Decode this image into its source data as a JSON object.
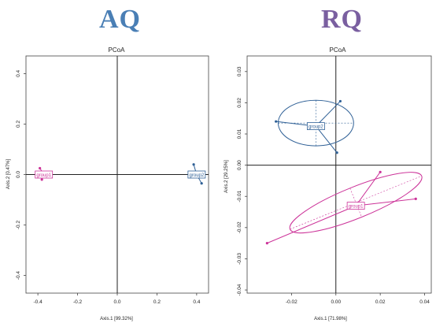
{
  "titles": {
    "left": "AQ",
    "right": "RQ",
    "left_color": "#4a7fb5",
    "right_color": "#7a5fa0"
  },
  "colors": {
    "group1": "#cc3399",
    "group2": "#2f6096"
  },
  "chart_data": [
    {
      "type": "scatter",
      "title": "PCoA",
      "xlabel": "Axis.1 [99.32%]",
      "ylabel": "Axis.2 [0.47%]",
      "xlim": [
        -0.46,
        0.46
      ],
      "ylim": [
        -0.47,
        0.47
      ],
      "xticks": [
        -0.4,
        -0.2,
        0.0,
        0.2,
        0.4
      ],
      "xtick_labels": [
        "-0.4",
        "-0.2",
        "0.0",
        "0.2",
        "0.4"
      ],
      "yticks": [
        -0.4,
        -0.2,
        0.0,
        0.2,
        0.4
      ],
      "ytick_labels": [
        "-0.4",
        "-0.2",
        "0.0",
        "0.2",
        "0.4"
      ],
      "reference_lines": {
        "x": 0,
        "y": 0
      },
      "groups": [
        {
          "name": "group1",
          "color": "#cc3399",
          "centroid": [
            -0.37,
            0.0
          ],
          "points": [
            [
              -0.39,
              0.025
            ],
            [
              -0.37,
              0.005
            ],
            [
              -0.38,
              -0.02
            ]
          ]
        },
        {
          "name": "group2",
          "color": "#2f6096",
          "centroid": [
            0.4,
            0.0
          ],
          "points": [
            [
              0.385,
              0.04
            ],
            [
              0.41,
              0.005
            ],
            [
              0.425,
              -0.035
            ]
          ]
        }
      ]
    },
    {
      "type": "scatter",
      "title": "PCoA",
      "xlabel": "Axis.1 [71.98%]",
      "ylabel": "Axis.2 [29.25%]",
      "xlim": [
        -0.04,
        0.043
      ],
      "ylim": [
        -0.041,
        0.035
      ],
      "xticks": [
        -0.02,
        0.0,
        0.02,
        0.04
      ],
      "xtick_labels": [
        "-0.02",
        "0.00",
        "0.02",
        "0.04"
      ],
      "yticks": [
        -0.04,
        -0.03,
        -0.02,
        -0.01,
        0.0,
        0.01,
        0.02,
        0.03
      ],
      "ytick_labels": [
        "-0.04",
        "-0.03",
        "-0.02",
        "-0.01",
        "0.00",
        "0.01",
        "0.02",
        "0.03"
      ],
      "reference_lines": {
        "x": 0,
        "y": 0
      },
      "groups": [
        {
          "name": "group2",
          "color": "#2f6096",
          "centroid": [
            -0.009,
            0.0125
          ],
          "points": [
            [
              -0.027,
              0.014
            ],
            [
              0.002,
              0.0205
            ],
            [
              0.0005,
              0.004
            ]
          ],
          "ellipse": {
            "center": [
              -0.009,
              0.0135
            ],
            "rx": 0.017,
            "ry": 0.0073,
            "angle": 0
          }
        },
        {
          "name": "group1",
          "color": "#cc3399",
          "centroid": [
            0.009,
            -0.013
          ],
          "points": [
            [
              -0.031,
              -0.025
            ],
            [
              0.02,
              -0.0022
            ],
            [
              0.036,
              -0.0108
            ]
          ],
          "ellipse": {
            "center": [
              0.009,
              -0.012
            ],
            "rx": 0.032,
            "ry": 0.005,
            "angle": 22
          }
        }
      ]
    }
  ]
}
